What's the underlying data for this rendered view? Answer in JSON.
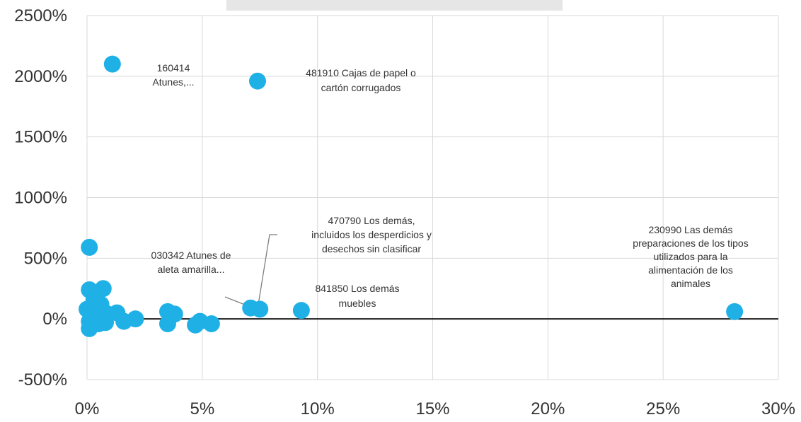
{
  "chart_data": {
    "type": "scatter",
    "title": "",
    "xlabel": "",
    "ylabel": "",
    "xlim": [
      0,
      30
    ],
    "ylim": [
      -500,
      2500
    ],
    "x_ticks": [
      0,
      5,
      10,
      15,
      20,
      25,
      30
    ],
    "x_tick_labels": [
      "0%",
      "5%",
      "10%",
      "15%",
      "20%",
      "25%",
      "30%"
    ],
    "y_ticks": [
      -500,
      0,
      500,
      1000,
      1500,
      2000,
      2500
    ],
    "y_tick_labels": [
      "-500%",
      "0%",
      "500%",
      "1000%",
      "1500%",
      "2000%",
      "2500%"
    ],
    "grid": true,
    "point_color": "#1fb1e6",
    "points": [
      {
        "x": 1.1,
        "y": 2100
      },
      {
        "x": 7.4,
        "y": 1960
      },
      {
        "x": 0.1,
        "y": 590
      },
      {
        "x": 0.1,
        "y": 240
      },
      {
        "x": 0.7,
        "y": 250
      },
      {
        "x": 0.3,
        "y": 160
      },
      {
        "x": 0.6,
        "y": 120
      },
      {
        "x": 0.0,
        "y": 80
      },
      {
        "x": 0.2,
        "y": 40
      },
      {
        "x": 0.4,
        "y": 10
      },
      {
        "x": 0.1,
        "y": -20
      },
      {
        "x": 0.5,
        "y": -40
      },
      {
        "x": 0.1,
        "y": -80
      },
      {
        "x": 0.8,
        "y": -30
      },
      {
        "x": 0.9,
        "y": 40
      },
      {
        "x": 1.3,
        "y": 50
      },
      {
        "x": 1.6,
        "y": -20
      },
      {
        "x": 2.1,
        "y": 0
      },
      {
        "x": 3.5,
        "y": 60
      },
      {
        "x": 3.8,
        "y": 40
      },
      {
        "x": 3.5,
        "y": -40
      },
      {
        "x": 4.7,
        "y": -50
      },
      {
        "x": 4.9,
        "y": -20
      },
      {
        "x": 5.4,
        "y": -40
      },
      {
        "x": 7.1,
        "y": 90
      },
      {
        "x": 7.5,
        "y": 80
      },
      {
        "x": 9.3,
        "y": 70
      },
      {
        "x": 28.1,
        "y": 60
      }
    ],
    "annotations": [
      {
        "lines": [
          "160414",
          "Atunes,..."
        ]
      },
      {
        "lines": [
          "481910 Cajas de papel o",
          "cartón corrugados"
        ]
      },
      {
        "lines": [
          "470790 Los demás,",
          "incluidos los desperdicios y",
          "desechos sin clasificar"
        ]
      },
      {
        "lines": [
          "030342 Atunes de",
          "aleta amarilla..."
        ]
      },
      {
        "lines": [
          "841850 Los demás",
          "muebles"
        ]
      },
      {
        "lines": [
          "230990 Las demás",
          "preparaciones de los tipos",
          "utilizados para la",
          "alimentación de los",
          "animales"
        ]
      }
    ]
  }
}
